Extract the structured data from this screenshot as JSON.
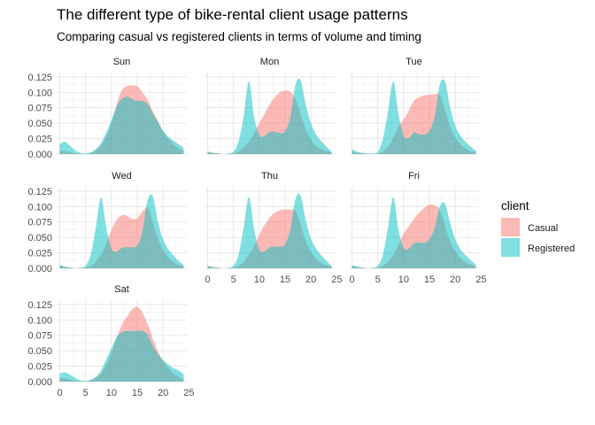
{
  "chart_data": {
    "type": "area",
    "title": "The different type of bike-rental client usage patterns",
    "subtitle": "Comparing casual vs registered clients in terms of volume and timing",
    "xlabel": "",
    "ylabel": "",
    "xlim": [
      0,
      24
    ],
    "ylim": [
      0,
      0.125
    ],
    "x_ticks": [
      0,
      5,
      10,
      15,
      20,
      25
    ],
    "y_ticks": [
      0.0,
      0.025,
      0.05,
      0.075,
      0.1,
      0.125
    ],
    "y_tick_labels": [
      "0.000",
      "0.025",
      "0.050",
      "0.075",
      "0.100",
      "0.125"
    ],
    "grid": true,
    "legend": {
      "title": "client",
      "position": "right",
      "entries": [
        {
          "name": "Casual",
          "color": "#F8766D"
        },
        {
          "name": "Registered",
          "color": "#00BFC4"
        }
      ]
    },
    "x": [
      0,
      1,
      2,
      3,
      4,
      5,
      6,
      7,
      8,
      9,
      10,
      11,
      12,
      13,
      14,
      15,
      16,
      17,
      18,
      19,
      20,
      21,
      22,
      23,
      24
    ],
    "facets": [
      {
        "label": "Sun",
        "series": [
          {
            "name": "Casual",
            "values": [
              0.006,
              0.005,
              0.003,
              0.001,
              0.0,
              0.0,
              0.002,
              0.006,
              0.014,
              0.028,
              0.048,
              0.08,
              0.103,
              0.11,
              0.111,
              0.11,
              0.1,
              0.088,
              0.07,
              0.054,
              0.036,
              0.025,
              0.016,
              0.009,
              0.005
            ]
          },
          {
            "name": "Registered",
            "values": [
              0.016,
              0.02,
              0.013,
              0.006,
              0.002,
              0.001,
              0.003,
              0.008,
              0.018,
              0.035,
              0.055,
              0.077,
              0.089,
              0.093,
              0.089,
              0.086,
              0.086,
              0.081,
              0.066,
              0.052,
              0.038,
              0.028,
              0.022,
              0.016,
              0.01
            ]
          }
        ]
      },
      {
        "label": "Mon",
        "series": [
          {
            "name": "Casual",
            "values": [
              0.004,
              0.002,
              0.001,
              0.0,
              0.0,
              0.001,
              0.004,
              0.011,
              0.02,
              0.033,
              0.05,
              0.065,
              0.08,
              0.092,
              0.1,
              0.103,
              0.101,
              0.09,
              0.064,
              0.04,
              0.024,
              0.013,
              0.008,
              0.005,
              0.003
            ]
          },
          {
            "name": "Registered",
            "values": [
              0.004,
              0.002,
              0.001,
              0.0,
              0.001,
              0.004,
              0.021,
              0.062,
              0.118,
              0.06,
              0.031,
              0.029,
              0.036,
              0.036,
              0.034,
              0.037,
              0.059,
              0.112,
              0.12,
              0.08,
              0.05,
              0.032,
              0.021,
              0.012,
              0.004
            ]
          }
        ]
      },
      {
        "label": "Tue",
        "series": [
          {
            "name": "Casual",
            "values": [
              0.004,
              0.002,
              0.001,
              0.0,
              0.0,
              0.001,
              0.004,
              0.012,
              0.026,
              0.044,
              0.056,
              0.07,
              0.086,
              0.092,
              0.095,
              0.096,
              0.097,
              0.096,
              0.071,
              0.045,
              0.027,
              0.016,
              0.009,
              0.005,
              0.003
            ]
          },
          {
            "name": "Registered",
            "values": [
              0.008,
              0.004,
              0.002,
              0.001,
              0.001,
              0.004,
              0.025,
              0.07,
              0.118,
              0.066,
              0.03,
              0.026,
              0.035,
              0.032,
              0.032,
              0.037,
              0.06,
              0.112,
              0.118,
              0.076,
              0.046,
              0.03,
              0.02,
              0.012,
              0.005
            ]
          }
        ]
      },
      {
        "label": "Wed",
        "series": [
          {
            "name": "Casual",
            "values": [
              0.004,
              0.002,
              0.001,
              0.0,
              0.0,
              0.001,
              0.004,
              0.011,
              0.022,
              0.04,
              0.062,
              0.078,
              0.086,
              0.085,
              0.08,
              0.081,
              0.092,
              0.098,
              0.076,
              0.048,
              0.03,
              0.018,
              0.01,
              0.006,
              0.003
            ]
          },
          {
            "name": "Registered",
            "values": [
              0.006,
              0.003,
              0.001,
              0.0,
              0.001,
              0.004,
              0.022,
              0.067,
              0.115,
              0.066,
              0.032,
              0.027,
              0.033,
              0.034,
              0.034,
              0.037,
              0.06,
              0.11,
              0.117,
              0.076,
              0.047,
              0.031,
              0.021,
              0.012,
              0.005
            ]
          }
        ]
      },
      {
        "label": "Thu",
        "series": [
          {
            "name": "Casual",
            "values": [
              0.004,
              0.002,
              0.001,
              0.0,
              0.0,
              0.001,
              0.004,
              0.011,
              0.022,
              0.036,
              0.054,
              0.07,
              0.082,
              0.09,
              0.094,
              0.095,
              0.095,
              0.093,
              0.071,
              0.045,
              0.027,
              0.016,
              0.009,
              0.005,
              0.003
            ]
          },
          {
            "name": "Registered",
            "values": [
              0.004,
              0.002,
              0.001,
              0.0,
              0.001,
              0.004,
              0.022,
              0.067,
              0.115,
              0.063,
              0.03,
              0.027,
              0.034,
              0.035,
              0.035,
              0.039,
              0.062,
              0.112,
              0.118,
              0.078,
              0.048,
              0.032,
              0.021,
              0.012,
              0.004
            ]
          }
        ]
      },
      {
        "label": "Fri",
        "series": [
          {
            "name": "Casual",
            "values": [
              0.004,
              0.002,
              0.001,
              0.0,
              0.0,
              0.001,
              0.004,
              0.011,
              0.022,
              0.038,
              0.056,
              0.068,
              0.08,
              0.09,
              0.098,
              0.103,
              0.102,
              0.095,
              0.07,
              0.044,
              0.028,
              0.017,
              0.01,
              0.006,
              0.003
            ]
          },
          {
            "name": "Registered",
            "values": [
              0.005,
              0.003,
              0.001,
              0.0,
              0.001,
              0.004,
              0.022,
              0.067,
              0.115,
              0.063,
              0.033,
              0.032,
              0.04,
              0.042,
              0.041,
              0.047,
              0.065,
              0.1,
              0.105,
              0.074,
              0.047,
              0.031,
              0.021,
              0.013,
              0.006
            ]
          }
        ]
      },
      {
        "label": "Sat",
        "series": [
          {
            "name": "Casual",
            "values": [
              0.006,
              0.005,
              0.003,
              0.001,
              0.0,
              0.0,
              0.002,
              0.006,
              0.013,
              0.027,
              0.045,
              0.07,
              0.092,
              0.105,
              0.117,
              0.121,
              0.112,
              0.093,
              0.07,
              0.05,
              0.033,
              0.022,
              0.013,
              0.008,
              0.004
            ]
          },
          {
            "name": "Registered",
            "values": [
              0.013,
              0.015,
              0.011,
              0.006,
              0.002,
              0.001,
              0.003,
              0.008,
              0.018,
              0.036,
              0.054,
              0.072,
              0.08,
              0.082,
              0.082,
              0.082,
              0.082,
              0.076,
              0.058,
              0.045,
              0.035,
              0.028,
              0.022,
              0.018,
              0.012
            ]
          }
        ]
      }
    ]
  }
}
